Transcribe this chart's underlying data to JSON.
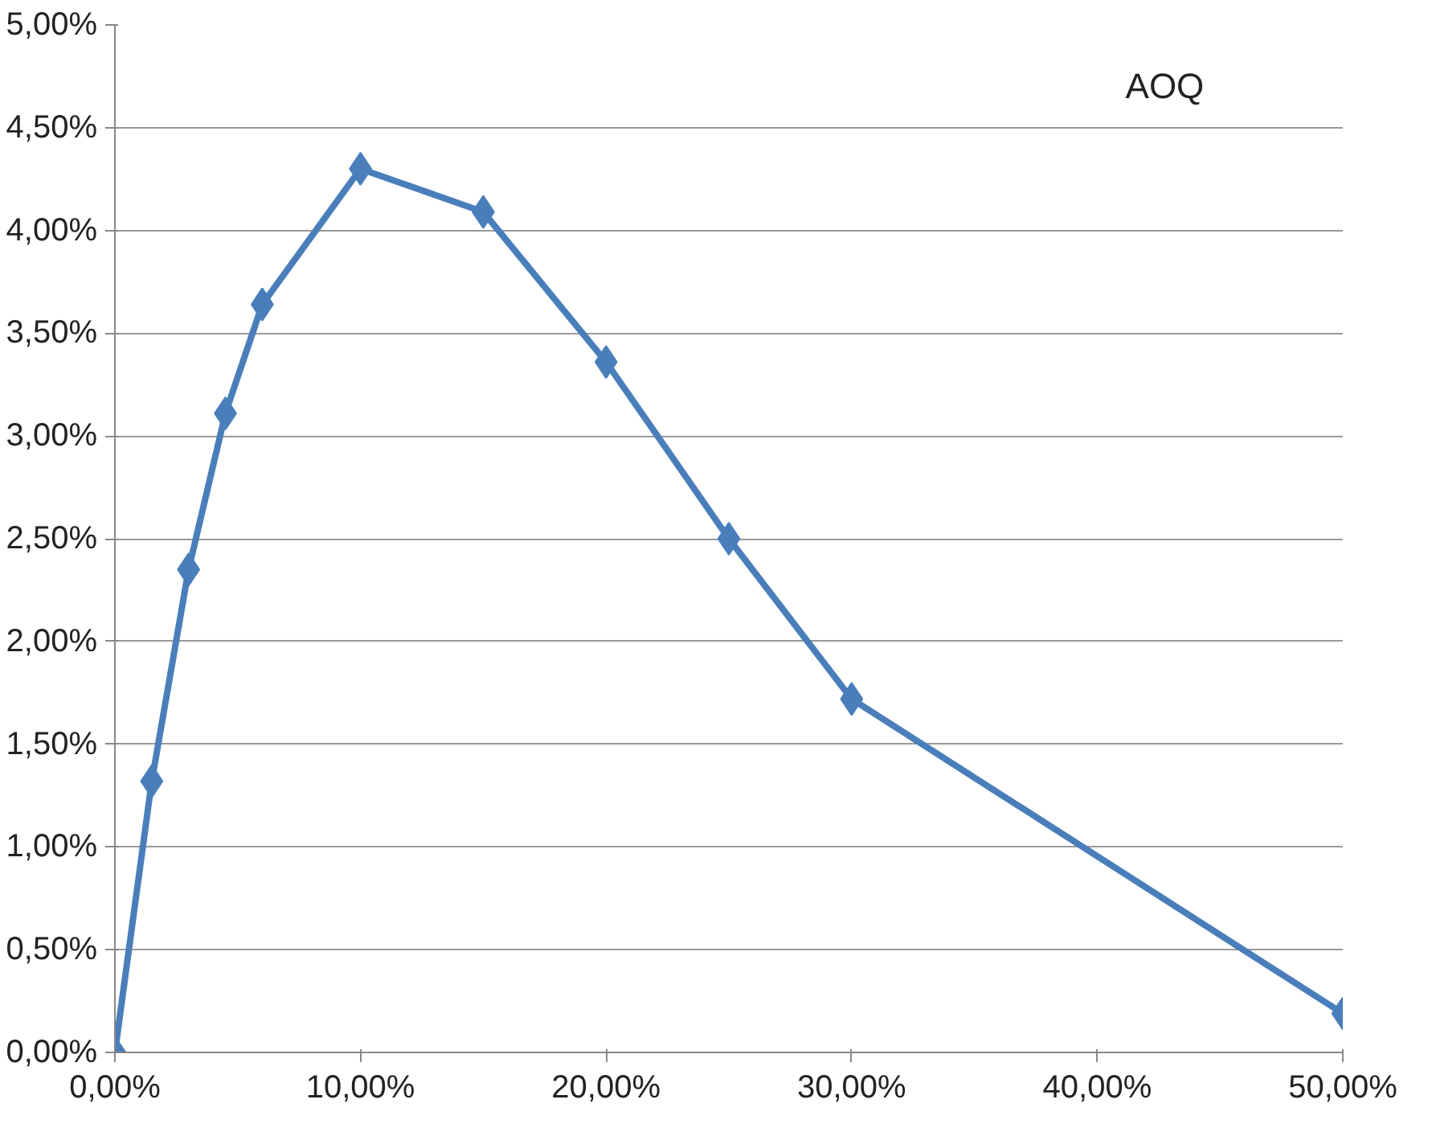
{
  "chart_data": {
    "type": "line",
    "title": "AOQ",
    "x": [
      0,
      1.5,
      3,
      4.5,
      6,
      10,
      15,
      20,
      25,
      30,
      50
    ],
    "series": [
      {
        "color": "#4a7ebb",
        "values": [
          0,
          1.32,
          2.35,
          3.11,
          3.64,
          4.3,
          4.09,
          3.36,
          2.5,
          1.72,
          0.19
        ]
      }
    ],
    "xlim": [
      0,
      50
    ],
    "xticks": [
      {
        "value": 0,
        "label": "0,00%"
      },
      {
        "value": 10,
        "label": "10,00%"
      },
      {
        "value": 20,
        "label": "20,00%"
      },
      {
        "value": 30,
        "label": "30,00%"
      },
      {
        "value": 40,
        "label": "40,00%"
      },
      {
        "value": 50,
        "label": "50,00%"
      }
    ],
    "ylim": [
      0,
      5
    ],
    "yticks": [
      {
        "value": 0,
        "label": "0,00%"
      },
      {
        "value": 0.5,
        "label": "0,50%"
      },
      {
        "value": 1,
        "label": "1,00%"
      },
      {
        "value": 1.5,
        "label": "1,50%"
      },
      {
        "value": 2,
        "label": "2,00%"
      },
      {
        "value": 2.5,
        "label": "2,50%"
      },
      {
        "value": 3,
        "label": "3,00%"
      },
      {
        "value": 3.5,
        "label": "3,50%"
      },
      {
        "value": 4,
        "label": "4,00%"
      },
      {
        "value": 4.5,
        "label": "4,50%"
      },
      {
        "value": 5,
        "label": "5,00%"
      }
    ],
    "grid": "y",
    "marker": "diamond",
    "line_style": "solid"
  }
}
